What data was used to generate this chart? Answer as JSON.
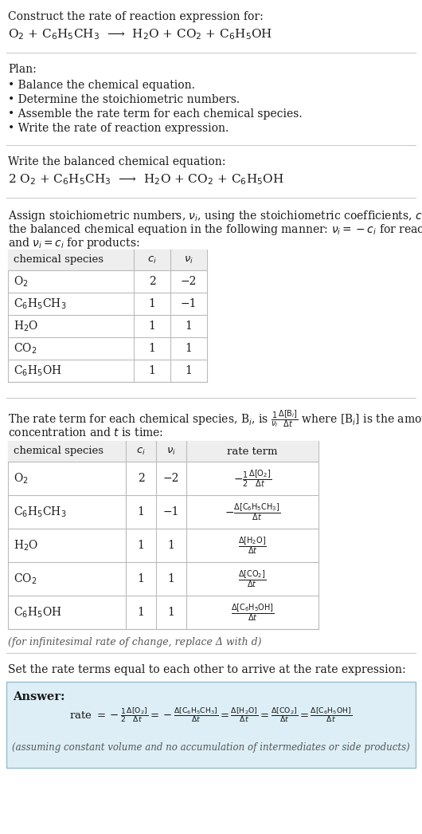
{
  "bg_color": "#ffffff",
  "text_color": "#1a1a1a",
  "gray_text": "#555555",
  "table_border": "#bbbbbb",
  "answer_bg": "#ddeef6",
  "answer_border": "#99bbcc",
  "title_line1": "Construct the rate of reaction expression for:",
  "reaction_unbalanced": "O$_2$ + C$_6$H$_5$CH$_3$  ⟶  H$_2$O + CO$_2$ + C$_6$H$_5$OH",
  "plan_header": "Plan:",
  "plan_items": [
    "• Balance the chemical equation.",
    "• Determine the stoichiometric numbers.",
    "• Assemble the rate term for each chemical species.",
    "• Write the rate of reaction expression."
  ],
  "balanced_header": "Write the balanced chemical equation:",
  "reaction_balanced": "2 O$_2$ + C$_6$H$_5$CH$_3$  ⟶  H$_2$O + CO$_2$ + C$_6$H$_5$OH",
  "stoich_header_line1": "Assign stoichiometric numbers, $\\nu_i$, using the stoichiometric coefficients, $c_i$, from",
  "stoich_header_line2": "the balanced chemical equation in the following manner: $\\nu_i = -c_i$ for reactants",
  "stoich_header_line3": "and $\\nu_i = c_i$ for products:",
  "table1_headers": [
    "chemical species",
    "$c_i$",
    "$\\nu_i$"
  ],
  "table1_rows": [
    [
      "O$_2$",
      "2",
      "−2"
    ],
    [
      "C$_6$H$_5$CH$_3$",
      "1",
      "−1"
    ],
    [
      "H$_2$O",
      "1",
      "1"
    ],
    [
      "CO$_2$",
      "1",
      "1"
    ],
    [
      "C$_6$H$_5$OH",
      "1",
      "1"
    ]
  ],
  "rate_term_line1": "The rate term for each chemical species, B$_i$, is $\\frac{1}{\\nu_i}\\frac{\\Delta[\\mathrm{B}_i]}{\\Delta t}$ where [B$_i$] is the amount",
  "rate_term_line2": "concentration and $t$ is time:",
  "table2_headers": [
    "chemical species",
    "$c_i$",
    "$\\nu_i$",
    "rate term"
  ],
  "table2_rows": [
    [
      "O$_2$",
      "2",
      "−2",
      "$-\\frac{1}{2}\\frac{\\Delta[\\mathrm{O_2}]}{\\Delta t}$"
    ],
    [
      "C$_6$H$_5$CH$_3$",
      "1",
      "−1",
      "$-\\frac{\\Delta[\\mathrm{C_6H_5CH_3}]}{\\Delta t}$"
    ],
    [
      "H$_2$O",
      "1",
      "1",
      "$\\frac{\\Delta[\\mathrm{H_2O}]}{\\Delta t}$"
    ],
    [
      "CO$_2$",
      "1",
      "1",
      "$\\frac{\\Delta[\\mathrm{CO_2}]}{\\Delta t}$"
    ],
    [
      "C$_6$H$_5$OH",
      "1",
      "1",
      "$\\frac{\\Delta[\\mathrm{C_6H_5OH}]}{\\Delta t}$"
    ]
  ],
  "infinitesimal_note": "(for infinitesimal rate of change, replace Δ with d)",
  "rate_expr_header": "Set the rate terms equal to each other to arrive at the rate expression:",
  "answer_label": "Answer:",
  "rate_expression": "rate $= -\\frac{1}{2}\\frac{\\Delta[\\mathrm{O_2}]}{\\Delta t} = -\\frac{\\Delta[\\mathrm{C_6H_5CH_3}]}{\\Delta t} = \\frac{\\Delta[\\mathrm{H_2O}]}{\\Delta t} = \\frac{\\Delta[\\mathrm{CO_2}]}{\\Delta t} = \\frac{\\Delta[\\mathrm{C_6H_5OH}]}{\\Delta t}$",
  "assuming_note": "(assuming constant volume and no accumulation of intermediates or side products)"
}
